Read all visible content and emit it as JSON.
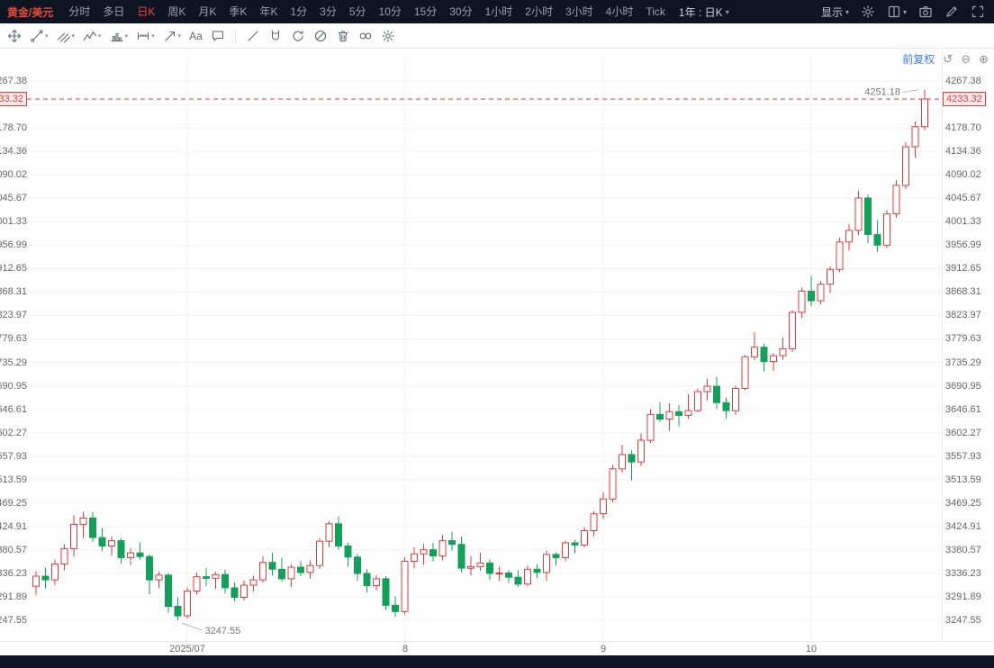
{
  "topbar": {
    "symbol": "黄金/美元",
    "periods": [
      "分时",
      "多日",
      "日K",
      "周K",
      "月K",
      "季K",
      "年K",
      "1分",
      "3分",
      "5分",
      "10分",
      "15分",
      "30分",
      "1小时",
      "2小时",
      "3小时",
      "4小时",
      "Tick"
    ],
    "active_period_index": 2,
    "range_selector_label": "1年 : 日K",
    "display_label": "显示",
    "icons": [
      "settings-icon",
      "layout-icon",
      "camera-icon",
      "edit-icon",
      "fullscreen-icon"
    ]
  },
  "drawing_toolbar": {
    "tools": [
      {
        "name": "move-tool"
      },
      {
        "name": "trendline-tool",
        "dropdown": true
      },
      {
        "name": "pitchfork-tool",
        "dropdown": true
      },
      {
        "name": "wave-tool",
        "dropdown": true
      },
      {
        "name": "pattern-tool",
        "dropdown": true
      },
      {
        "name": "measure-tool",
        "dropdown": true
      },
      {
        "name": "arrow-tool",
        "dropdown": true
      },
      {
        "name": "text-tool",
        "label": "Aa"
      },
      {
        "name": "comment-tool"
      },
      {
        "divider": true
      },
      {
        "name": "line-tool"
      },
      {
        "name": "magnet-tool"
      },
      {
        "name": "continuous-draw-tool"
      },
      {
        "name": "hide-drawings-tool"
      },
      {
        "name": "delete-drawings-tool"
      },
      {
        "name": "link-drawings-tool"
      },
      {
        "name": "drawing-settings-tool"
      }
    ]
  },
  "chart_header": {
    "adjustment_label": "前复权",
    "icons": [
      {
        "name": "undo-icon",
        "glyph": "↺"
      },
      {
        "name": "zoom-out-icon",
        "glyph": "⊖"
      },
      {
        "name": "zoom-in-icon",
        "glyph": "⊕"
      }
    ]
  },
  "chart_data": {
    "type": "candlestick",
    "symbol": "黄金/美元",
    "timeframe": "日K",
    "adjustment": "前复权",
    "current_price": 4233.32,
    "colors": {
      "up": "#e23b3b",
      "down": "#14a05a",
      "current_price_line": "#e23b3b"
    },
    "y_axis": {
      "tick_labels": [
        "4267.38",
        "4223.04",
        "4178.70",
        "4134.36",
        "4090.02",
        "4045.67",
        "4001.33",
        "3956.99",
        "3912.65",
        "3868.31",
        "3823.97",
        "3779.63",
        "3735.29",
        "3690.95",
        "3646.61",
        "3602.27",
        "3557.93",
        "3513.59",
        "3469.25",
        "3424.91",
        "3380.57",
        "3336.23",
        "3291.89",
        "3247.55"
      ],
      "max": 4267.38,
      "min": 3247.55
    },
    "x_axis": {
      "month_ticks": [
        {
          "label": "2025/07",
          "candle_index": 16
        },
        {
          "label": "8",
          "candle_index": 39
        },
        {
          "label": "9",
          "candle_index": 60
        },
        {
          "label": "10",
          "candle_index": 82
        }
      ]
    },
    "annotations": {
      "high": {
        "text": "4251.18",
        "candle_index": 94,
        "price": 4251.18
      },
      "low": {
        "text": "3247.55",
        "candle_index": 15,
        "price": 3247.55
      }
    },
    "candles": [
      [
        3312,
        3340,
        3295,
        3331
      ],
      [
        3331,
        3347,
        3308,
        3324
      ],
      [
        3324,
        3362,
        3314,
        3354
      ],
      [
        3354,
        3391,
        3342,
        3383
      ],
      [
        3383,
        3446,
        3368,
        3429
      ],
      [
        3429,
        3453,
        3403,
        3441
      ],
      [
        3441,
        3452,
        3396,
        3404
      ],
      [
        3404,
        3422,
        3378,
        3388
      ],
      [
        3388,
        3406,
        3370,
        3398
      ],
      [
        3398,
        3403,
        3355,
        3366
      ],
      [
        3366,
        3384,
        3352,
        3375
      ],
      [
        3375,
        3395,
        3362,
        3368
      ],
      [
        3368,
        3372,
        3297,
        3324
      ],
      [
        3324,
        3340,
        3308,
        3333
      ],
      [
        3333,
        3337,
        3262,
        3274
      ],
      [
        3274,
        3291,
        3247.55,
        3256
      ],
      [
        3256,
        3309,
        3251,
        3303
      ],
      [
        3303,
        3338,
        3296,
        3330
      ],
      [
        3330,
        3346,
        3312,
        3327
      ],
      [
        3327,
        3339,
        3307,
        3334
      ],
      [
        3334,
        3343,
        3298,
        3309
      ],
      [
        3309,
        3319,
        3283,
        3291
      ],
      [
        3291,
        3323,
        3285,
        3314
      ],
      [
        3314,
        3332,
        3302,
        3324
      ],
      [
        3324,
        3369,
        3319,
        3357
      ],
      [
        3357,
        3375,
        3332,
        3344
      ],
      [
        3344,
        3366,
        3321,
        3326
      ],
      [
        3326,
        3353,
        3310,
        3348
      ],
      [
        3348,
        3360,
        3331,
        3338
      ],
      [
        3338,
        3361,
        3326,
        3351
      ],
      [
        3351,
        3403,
        3345,
        3397
      ],
      [
        3397,
        3435,
        3386,
        3430
      ],
      [
        3430,
        3444,
        3381,
        3388
      ],
      [
        3388,
        3394,
        3349,
        3367
      ],
      [
        3367,
        3373,
        3322,
        3336
      ],
      [
        3336,
        3344,
        3300,
        3313
      ],
      [
        3313,
        3333,
        3304,
        3326
      ],
      [
        3326,
        3331,
        3267,
        3276
      ],
      [
        3276,
        3293,
        3254,
        3264
      ],
      [
        3264,
        3366,
        3259,
        3359
      ],
      [
        3359,
        3386,
        3346,
        3373
      ],
      [
        3373,
        3392,
        3353,
        3381
      ],
      [
        3381,
        3394,
        3359,
        3369
      ],
      [
        3369,
        3409,
        3361,
        3398
      ],
      [
        3398,
        3415,
        3379,
        3391
      ],
      [
        3391,
        3406,
        3338,
        3346
      ],
      [
        3346,
        3369,
        3332,
        3349
      ],
      [
        3349,
        3375,
        3341,
        3356
      ],
      [
        3356,
        3363,
        3324,
        3336
      ],
      [
        3336,
        3349,
        3322,
        3337
      ],
      [
        3337,
        3342,
        3318,
        3329
      ],
      [
        3329,
        3342,
        3311,
        3316
      ],
      [
        3316,
        3351,
        3312,
        3344
      ],
      [
        3344,
        3353,
        3327,
        3338
      ],
      [
        3338,
        3379,
        3322,
        3372
      ],
      [
        3372,
        3376,
        3351,
        3366
      ],
      [
        3366,
        3398,
        3359,
        3394
      ],
      [
        3394,
        3400,
        3374,
        3390
      ],
      [
        3390,
        3424,
        3385,
        3417
      ],
      [
        3417,
        3454,
        3406,
        3449
      ],
      [
        3449,
        3490,
        3439,
        3477
      ],
      [
        3477,
        3541,
        3471,
        3534
      ],
      [
        3534,
        3579,
        3527,
        3561
      ],
      [
        3561,
        3569,
        3512,
        3547
      ],
      [
        3547,
        3601,
        3539,
        3588
      ],
      [
        3588,
        3647,
        3583,
        3637
      ],
      [
        3637,
        3660,
        3623,
        3628
      ],
      [
        3628,
        3658,
        3606,
        3642
      ],
      [
        3642,
        3655,
        3614,
        3635
      ],
      [
        3635,
        3675,
        3629,
        3644
      ],
      [
        3644,
        3686,
        3641,
        3680
      ],
      [
        3680,
        3704,
        3663,
        3690
      ],
      [
        3690,
        3708,
        3647,
        3659
      ],
      [
        3659,
        3669,
        3629,
        3644
      ],
      [
        3644,
        3691,
        3636,
        3686
      ],
      [
        3686,
        3749,
        3683,
        3746
      ],
      [
        3746,
        3792,
        3739,
        3764
      ],
      [
        3764,
        3771,
        3718,
        3737
      ],
      [
        3737,
        3753,
        3719,
        3748
      ],
      [
        3748,
        3782,
        3740,
        3761
      ],
      [
        3761,
        3834,
        3755,
        3830
      ],
      [
        3830,
        3877,
        3819,
        3870
      ],
      [
        3870,
        3899,
        3841,
        3852
      ],
      [
        3852,
        3889,
        3845,
        3883
      ],
      [
        3883,
        3917,
        3867,
        3911
      ],
      [
        3911,
        3971,
        3906,
        3963
      ],
      [
        3963,
        3996,
        3947,
        3985
      ],
      [
        3985,
        4060,
        3976,
        4046
      ],
      [
        4046,
        4053,
        3961,
        3977
      ],
      [
        3977,
        4004,
        3944,
        3957
      ],
      [
        3957,
        4023,
        3951,
        4016
      ],
      [
        4016,
        4080,
        4009,
        4070
      ],
      [
        4070,
        4152,
        4063,
        4143
      ],
      [
        4143,
        4191,
        4122,
        4181
      ],
      [
        4181,
        4251.18,
        4174,
        4233.32
      ]
    ]
  }
}
